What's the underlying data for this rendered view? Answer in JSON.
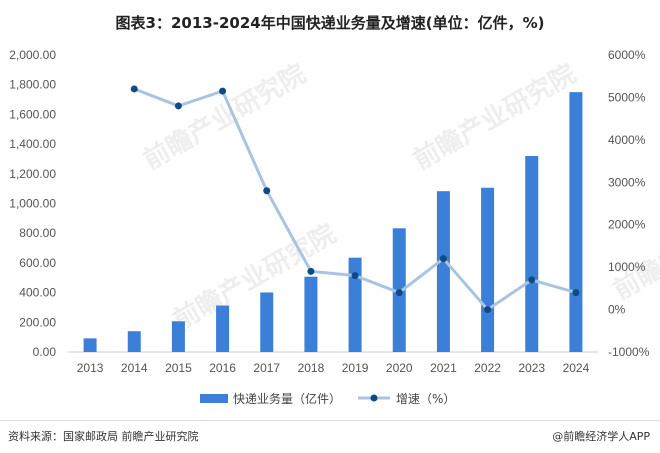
{
  "chart_data": {
    "type": "bar",
    "title": "图表3：2013-2024年中国快递业务量及增速(单位：亿件，%)",
    "categories": [
      "2013",
      "2014",
      "2015",
      "2016",
      "2017",
      "2018",
      "2019",
      "2020",
      "2021",
      "2022",
      "2023",
      "2024"
    ],
    "series": [
      {
        "name": "快递业务量（亿件）",
        "type": "bar",
        "axis": "left",
        "color": "#3c7fd9",
        "values": [
          92,
          140,
          207,
          313,
          401,
          507,
          635,
          833,
          1083,
          1106,
          1320,
          1750
        ]
      },
      {
        "name": "增速（%）",
        "type": "line",
        "axis": "right",
        "color": "#a9c4e0",
        "marker_color": "#0e4a84",
        "values": [
          null,
          5200,
          4800,
          5150,
          2800,
          900,
          800,
          400,
          1200,
          0,
          700,
          400
        ]
      }
    ],
    "left_axis": {
      "ylim": [
        0,
        2000
      ],
      "ticks": [
        "0.00",
        "200.00",
        "400.00",
        "600.00",
        "800.00",
        "1,000.00",
        "1,200.00",
        "1,400.00",
        "1,600.00",
        "1,800.00",
        "2,000.00"
      ]
    },
    "right_axis": {
      "ylim": [
        -1000,
        6000
      ],
      "ticks": [
        "-1000%",
        "0%",
        "1000%",
        "2000%",
        "3000%",
        "4000%",
        "5000%",
        "6000%"
      ]
    },
    "grid": false,
    "legend_position": "bottom"
  },
  "footer": {
    "source": "资料来源：国家邮政局 前瞻产业研究院",
    "brand": "@前瞻经济学人APP"
  },
  "watermark": "前瞻产业研究院"
}
